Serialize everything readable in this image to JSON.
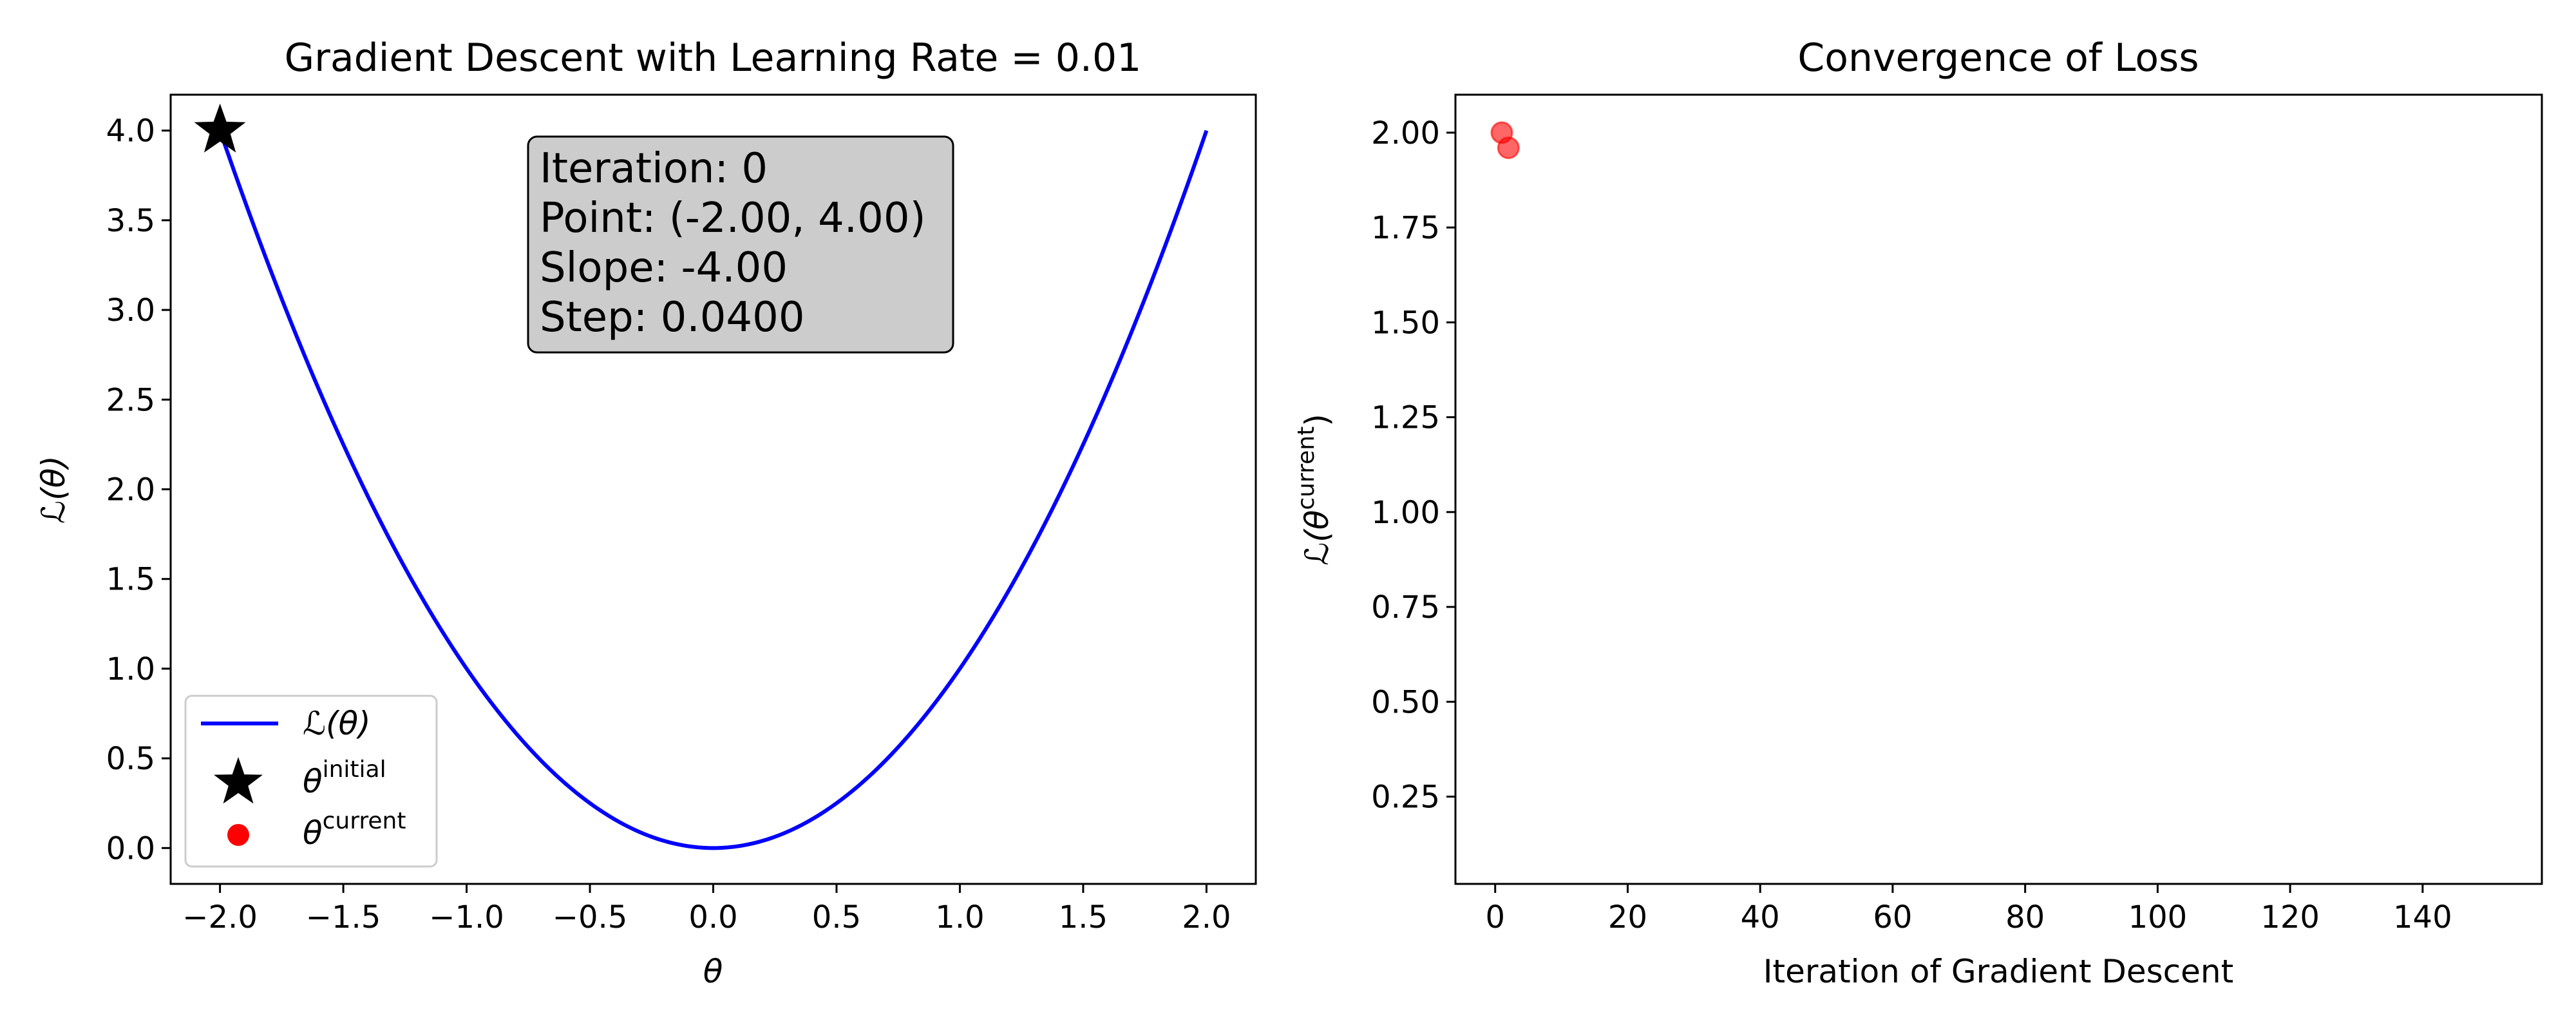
{
  "chart_data": [
    {
      "type": "line",
      "title": "Gradient Descent with Learning Rate = 0.01",
      "xlabel": "θ",
      "ylabel": "ℒ(θ)",
      "xlim": [
        -2.2,
        2.2
      ],
      "ylim": [
        -0.2,
        4.2
      ],
      "xticks": [
        -2.0,
        -1.5,
        -1.0,
        -0.5,
        0.0,
        0.5,
        1.0,
        1.5,
        2.0
      ],
      "xtick_labels": [
        "−2.0",
        "−1.5",
        "−1.0",
        "−0.5",
        "0.0",
        "0.5",
        "1.0",
        "1.5",
        "2.0"
      ],
      "yticks": [
        0.0,
        0.5,
        1.0,
        1.5,
        2.0,
        2.5,
        3.0,
        3.5,
        4.0
      ],
      "ytick_labels": [
        "0.0",
        "0.5",
        "1.0",
        "1.5",
        "2.0",
        "2.5",
        "3.0",
        "3.5",
        "4.0"
      ],
      "grid": false,
      "legend_position": "lower-left",
      "series": [
        {
          "name": "ℒ(θ)",
          "kind": "line",
          "color": "#0000ff",
          "function": "theta^2",
          "x_range": [
            -2.0,
            2.0
          ]
        },
        {
          "name": "θ^initial",
          "kind": "marker-star",
          "color": "#000000",
          "points": [
            {
              "x": -2.0,
              "y": 4.0
            }
          ]
        },
        {
          "name": "θ^current",
          "kind": "marker-circle",
          "color": "#ff0000",
          "points": []
        }
      ],
      "legend": [
        {
          "symbol": "line",
          "color": "#0000ff",
          "base": "ℒ(θ)",
          "sup": ""
        },
        {
          "symbol": "star",
          "color": "#000000",
          "base": "θ",
          "sup": "initial"
        },
        {
          "symbol": "circle",
          "color": "#ff0000",
          "base": "θ",
          "sup": "current"
        }
      ],
      "annotation": {
        "lines": [
          "Iteration: 0",
          "Point: (-2.00, 4.00)",
          "Slope: -4.00",
          "Step: 0.0400"
        ],
        "background": "#cccccc"
      }
    },
    {
      "type": "scatter",
      "title": "Convergence of Loss",
      "xlabel": "Iteration of Gradient Descent",
      "ylabel_base": "ℒ(θ",
      "ylabel_sup": "current",
      "ylabel_end": ")",
      "xlim": [
        -6,
        158
      ],
      "ylim": [
        0.02,
        2.1
      ],
      "xticks": [
        0,
        20,
        40,
        60,
        80,
        100,
        120,
        140
      ],
      "xtick_labels": [
        "0",
        "20",
        "40",
        "60",
        "80",
        "100",
        "120",
        "140"
      ],
      "yticks": [
        0.25,
        0.5,
        0.75,
        1.0,
        1.25,
        1.5,
        1.75,
        2.0
      ],
      "ytick_labels": [
        "0.25",
        "0.50",
        "0.75",
        "1.00",
        "1.25",
        "1.50",
        "1.75",
        "2.00"
      ],
      "grid": false,
      "series": [
        {
          "name": "",
          "color": "#ff0000",
          "points": [
            {
              "x": 1,
              "y": 2.0
            },
            {
              "x": 2,
              "y": 1.96
            }
          ]
        }
      ]
    }
  ]
}
